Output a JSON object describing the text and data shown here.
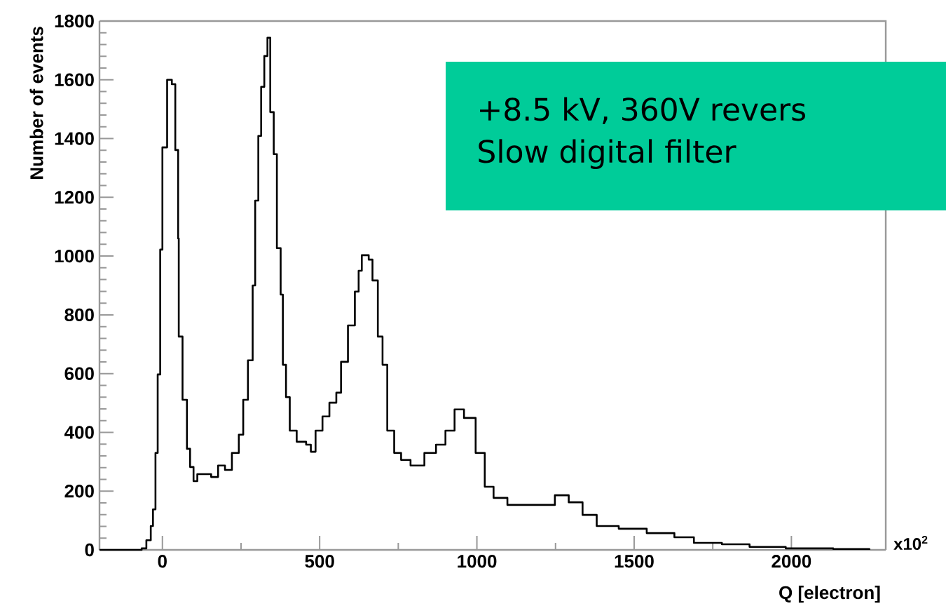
{
  "chart_data": {
    "type": "step",
    "xlabel": "Q [electron]",
    "ylabel": "Number of events",
    "annotations": [
      "+8.5 kV, 360V revers",
      "Slow digital filter",
      "x10$^{2}$"
    ],
    "x": [
      -200,
      -80,
      -66,
      -51,
      -37,
      -30,
      -22,
      -15,
      -7,
      0,
      15,
      30,
      41,
      50,
      52,
      64,
      78,
      88,
      99,
      111,
      155,
      177,
      199,
      221,
      243,
      257,
      272,
      287,
      295,
      305,
      314,
      324,
      334,
      343,
      354,
      364,
      376,
      383,
      393,
      405,
      427,
      457,
      472,
      487,
      509,
      531,
      553,
      568,
      590,
      612,
      624,
      634,
      656,
      668,
      685,
      700,
      715,
      737,
      759,
      789,
      833,
      870,
      900,
      929,
      959,
      996,
      1025,
      1053,
      1097,
      1172,
      1248,
      1292,
      1336,
      1381,
      1451,
      1540,
      1628,
      1690,
      1779,
      1867,
      1982,
      2133,
      2248
    ],
    "values": [
      0,
      0,
      5,
      33,
      81,
      138,
      330,
      597,
      1022,
      1370,
      1600,
      1585,
      1361,
      1060,
      726,
      511,
      344,
      282,
      234,
      258,
      248,
      287,
      272,
      330,
      392,
      511,
      645,
      900,
      1189,
      1409,
      1576,
      1681,
      1743,
      1490,
      1347,
      1027,
      869,
      630,
      520,
      406,
      368,
      358,
      334,
      406,
      454,
      501,
      535,
      640,
      764,
      879,
      950,
      1003,
      988,
      917,
      726,
      630,
      406,
      330,
      306,
      287,
      330,
      358,
      406,
      478,
      449,
      330,
      215,
      177,
      153,
      153,
      186,
      162,
      119,
      81,
      72,
      57,
      43,
      24,
      19,
      10,
      5,
      3,
      0
    ],
    "color": "#000000",
    "xlim": [
      -200,
      2300
    ],
    "ylim": [
      0,
      1800
    ],
    "xticks": [
      0,
      500,
      1000,
      1500,
      2000
    ],
    "yticks": [
      0,
      200,
      400,
      600,
      800,
      1000,
      1200,
      1400,
      1600,
      1800
    ]
  }
}
